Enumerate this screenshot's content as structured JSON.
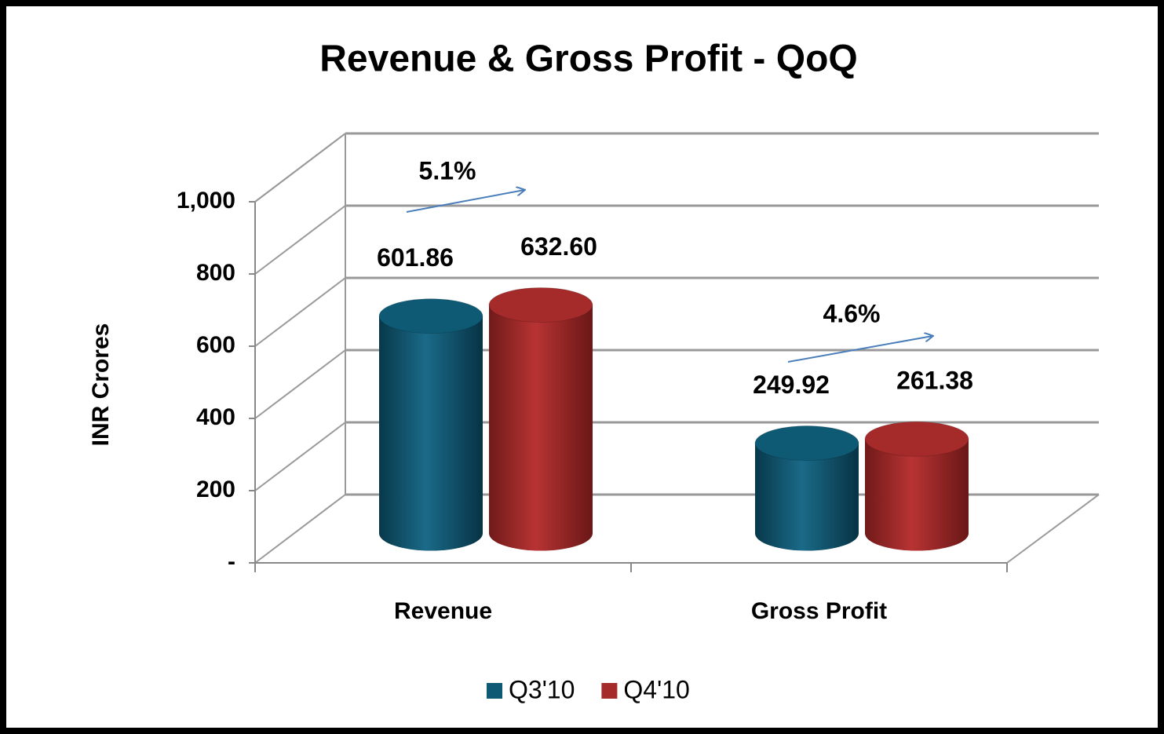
{
  "chart_data": {
    "type": "bar3d",
    "title": "Revenue & Gross Profit - QoQ",
    "y_label": "INR Crores",
    "categories": [
      "Revenue",
      "Gross Profit"
    ],
    "series": [
      {
        "name": "Q3'10",
        "color": "#0e5a75",
        "values": [
          601.86,
          249.92
        ],
        "value_labels": [
          "601.86",
          "249.92"
        ]
      },
      {
        "name": "Q4'10",
        "color": "#a52a2a",
        "values": [
          632.6,
          261.38
        ],
        "value_labels": [
          "632.60",
          "261.38"
        ]
      }
    ],
    "ylim": [
      0,
      1000
    ],
    "yticks": [
      {
        "value": 0,
        "label": "-"
      },
      200,
      400,
      600,
      800,
      {
        "value": 1000,
        "label": "1,000"
      }
    ],
    "grid": true,
    "legend": "bottom",
    "annotations": [
      "5.1%",
      "4.6%"
    ]
  }
}
